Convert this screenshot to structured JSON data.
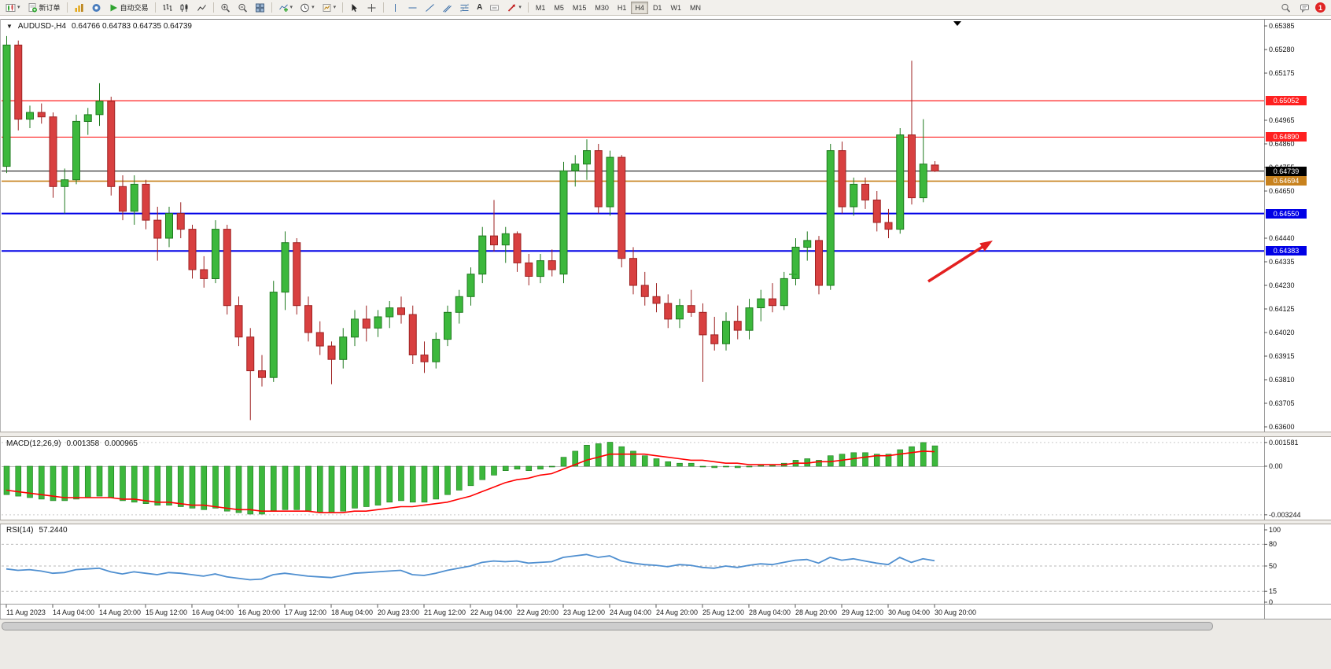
{
  "toolbar": {
    "new_order": "新订单",
    "autotrading": "自动交易",
    "timeframes": [
      "M1",
      "M5",
      "M15",
      "M30",
      "H1",
      "H4",
      "D1",
      "W1",
      "MN"
    ],
    "active_timeframe": "H4",
    "notification_badge": "1"
  },
  "chart": {
    "symbol": "AUDUSD-,H4",
    "ohlc_text": "0.64766 0.64783 0.64735 0.64739"
  },
  "macd": {
    "label": "MACD(12,26,9)",
    "value_main": "0.001358",
    "value_signal": "0.000965",
    "axis_ticks": [
      "0.001581",
      "0.00",
      "-0.003244"
    ]
  },
  "rsi": {
    "label": "RSI(14)",
    "value": "57.2440",
    "axis_ticks": [
      "100",
      "80",
      "50",
      "15",
      "0"
    ],
    "dashed_levels": [
      80,
      50,
      15
    ]
  },
  "colors": {
    "bull": "#3cb83c",
    "bull_border": "#1f7a1f",
    "bear": "#d84040",
    "bear_border": "#9e2222",
    "macd_hist": "#3cb83c",
    "macd_hist_border": "#1f7a1f",
    "macd_signal": "#ff0000",
    "rsi_line": "#4f8fd0",
    "arrow": "#e32020"
  },
  "chart_data": {
    "type": "candlestick",
    "title": "AUDUSD-,H4",
    "current": {
      "open": 0.64766,
      "high": 0.64783,
      "low": 0.64735,
      "close": 0.64739
    },
    "y_range": [
      0.636,
      0.65385
    ],
    "y_axis_ticks": [
      "0.65385",
      "0.65280",
      "0.65175",
      "0.64965",
      "0.64860",
      "0.64755",
      "0.64650",
      "0.64440",
      "0.64335",
      "0.64230",
      "0.64125",
      "0.64020",
      "0.63915",
      "0.63810",
      "0.63705",
      "0.63600"
    ],
    "levels": [
      {
        "name": "resistance-upper",
        "label": "0.65052",
        "price": 0.65052,
        "color": "#ff2020",
        "stroke_width": 1.2
      },
      {
        "name": "resistance-lower",
        "label": "0.64890",
        "price": 0.6489,
        "color": "#ff2020",
        "stroke_width": 1.2
      },
      {
        "name": "current-price",
        "label": "0.64739",
        "price": 0.64739,
        "color": "#000000",
        "stroke_width": 1
      },
      {
        "name": "pivot",
        "label": "0.64694",
        "price": 0.64694,
        "color": "#c8821e",
        "stroke_width": 1.6
      },
      {
        "name": "support-upper",
        "label": "0.64550",
        "price": 0.6455,
        "color": "#0000e6",
        "stroke_width": 2
      },
      {
        "name": "support-lower",
        "label": "0.64383",
        "price": 0.64383,
        "color": "#0000e6",
        "stroke_width": 2
      }
    ],
    "candles": [
      [
        0.6476,
        0.6534,
        0.6473,
        0.653
      ],
      [
        0.653,
        0.6532,
        0.6492,
        0.6497
      ],
      [
        0.6497,
        0.6503,
        0.6493,
        0.65
      ],
      [
        0.65,
        0.6504,
        0.6495,
        0.6498
      ],
      [
        0.6498,
        0.65,
        0.6462,
        0.6467
      ],
      [
        0.6467,
        0.6475,
        0.6455,
        0.647
      ],
      [
        0.647,
        0.6499,
        0.6468,
        0.6496
      ],
      [
        0.6496,
        0.6502,
        0.649,
        0.6499
      ],
      [
        0.6499,
        0.6513,
        0.6494,
        0.6505
      ],
      [
        0.6505,
        0.6507,
        0.6463,
        0.6467
      ],
      [
        0.6467,
        0.6472,
        0.6452,
        0.6456
      ],
      [
        0.6456,
        0.6472,
        0.645,
        0.6468
      ],
      [
        0.6468,
        0.647,
        0.6448,
        0.6452
      ],
      [
        0.6452,
        0.6458,
        0.6434,
        0.6444
      ],
      [
        0.6444,
        0.6458,
        0.644,
        0.6455
      ],
      [
        0.6455,
        0.646,
        0.6444,
        0.6448
      ],
      [
        0.6448,
        0.645,
        0.6426,
        0.643
      ],
      [
        0.643,
        0.6436,
        0.6422,
        0.6426
      ],
      [
        0.6426,
        0.6452,
        0.6424,
        0.6448
      ],
      [
        0.6448,
        0.645,
        0.641,
        0.6414
      ],
      [
        0.6414,
        0.6418,
        0.6396,
        0.64
      ],
      [
        0.64,
        0.6404,
        0.6363,
        0.6385
      ],
      [
        0.6385,
        0.6392,
        0.6378,
        0.6382
      ],
      [
        0.6382,
        0.6425,
        0.638,
        0.642
      ],
      [
        0.642,
        0.6447,
        0.6412,
        0.6442
      ],
      [
        0.6442,
        0.6444,
        0.641,
        0.6414
      ],
      [
        0.6414,
        0.6418,
        0.6398,
        0.6402
      ],
      [
        0.6402,
        0.6407,
        0.6392,
        0.6396
      ],
      [
        0.6396,
        0.6398,
        0.6379,
        0.639
      ],
      [
        0.639,
        0.6404,
        0.6386,
        0.64
      ],
      [
        0.64,
        0.6412,
        0.6396,
        0.6408
      ],
      [
        0.6408,
        0.6414,
        0.6398,
        0.6404
      ],
      [
        0.6404,
        0.6412,
        0.64,
        0.6409
      ],
      [
        0.6409,
        0.6416,
        0.6404,
        0.6413
      ],
      [
        0.6413,
        0.6418,
        0.6406,
        0.641
      ],
      [
        0.641,
        0.6414,
        0.6388,
        0.6392
      ],
      [
        0.6392,
        0.6398,
        0.6384,
        0.6389
      ],
      [
        0.6389,
        0.6402,
        0.6386,
        0.6399
      ],
      [
        0.6399,
        0.6414,
        0.6396,
        0.6411
      ],
      [
        0.6411,
        0.6421,
        0.6406,
        0.6418
      ],
      [
        0.6418,
        0.6431,
        0.6414,
        0.6428
      ],
      [
        0.6428,
        0.6449,
        0.6424,
        0.6445
      ],
      [
        0.6445,
        0.6461,
        0.6438,
        0.6441
      ],
      [
        0.6441,
        0.6449,
        0.6433,
        0.6446
      ],
      [
        0.6446,
        0.6447,
        0.6429,
        0.6433
      ],
      [
        0.6433,
        0.6437,
        0.6423,
        0.6427
      ],
      [
        0.6427,
        0.6437,
        0.6424,
        0.6434
      ],
      [
        0.6434,
        0.6439,
        0.6427,
        0.643
      ],
      [
        0.6428,
        0.6478,
        0.6424,
        0.6474
      ],
      [
        0.6474,
        0.6481,
        0.6467,
        0.6477
      ],
      [
        0.6477,
        0.6488,
        0.647,
        0.6483
      ],
      [
        0.6483,
        0.6486,
        0.6455,
        0.6458
      ],
      [
        0.6458,
        0.6483,
        0.6454,
        0.648
      ],
      [
        0.648,
        0.6481,
        0.6431,
        0.6435
      ],
      [
        0.6435,
        0.644,
        0.6419,
        0.6423
      ],
      [
        0.6423,
        0.6429,
        0.6414,
        0.6418
      ],
      [
        0.6418,
        0.6424,
        0.6411,
        0.6415
      ],
      [
        0.6415,
        0.6419,
        0.6404,
        0.6408
      ],
      [
        0.6408,
        0.6417,
        0.6404,
        0.6414
      ],
      [
        0.6414,
        0.6421,
        0.6409,
        0.6411
      ],
      [
        0.6411,
        0.6415,
        0.638,
        0.6401
      ],
      [
        0.6401,
        0.6409,
        0.6394,
        0.6397
      ],
      [
        0.6397,
        0.6411,
        0.6394,
        0.6407
      ],
      [
        0.6407,
        0.6414,
        0.6399,
        0.6403
      ],
      [
        0.6403,
        0.6417,
        0.6399,
        0.6413
      ],
      [
        0.6413,
        0.6421,
        0.6407,
        0.6417
      ],
      [
        0.6417,
        0.6424,
        0.6411,
        0.6414
      ],
      [
        0.6414,
        0.6429,
        0.6412,
        0.6426
      ],
      [
        0.6426,
        0.6444,
        0.6423,
        0.644
      ],
      [
        0.644,
        0.6447,
        0.6434,
        0.6443
      ],
      [
        0.6443,
        0.6445,
        0.6419,
        0.6423
      ],
      [
        0.6423,
        0.6486,
        0.6421,
        0.6483
      ],
      [
        0.6483,
        0.6487,
        0.6455,
        0.6458
      ],
      [
        0.6458,
        0.6471,
        0.6454,
        0.6468
      ],
      [
        0.6468,
        0.6471,
        0.6457,
        0.6461
      ],
      [
        0.6461,
        0.6465,
        0.6447,
        0.6451
      ],
      [
        0.6451,
        0.6457,
        0.6444,
        0.6448
      ],
      [
        0.6448,
        0.6493,
        0.6446,
        0.649
      ],
      [
        0.649,
        0.6523,
        0.6459,
        0.6462
      ],
      [
        0.6462,
        0.6497,
        0.646,
        0.6477
      ],
      [
        0.64766,
        0.64783,
        0.64735,
        0.64739
      ]
    ],
    "macd_histogram": [
      -0.0019,
      -0.002,
      -0.0021,
      -0.0022,
      -0.0023,
      -0.0023,
      -0.0022,
      -0.0021,
      -0.002,
      -0.0021,
      -0.0023,
      -0.0024,
      -0.0025,
      -0.0026,
      -0.0026,
      -0.0027,
      -0.0028,
      -0.0029,
      -0.0028,
      -0.003,
      -0.0031,
      -0.0032,
      -0.0032,
      -0.003,
      -0.0029,
      -0.0029,
      -0.003,
      -0.0031,
      -0.0031,
      -0.003,
      -0.0028,
      -0.0027,
      -0.0026,
      -0.0024,
      -0.0023,
      -0.0024,
      -0.0024,
      -0.0022,
      -0.0019,
      -0.0016,
      -0.0013,
      -0.0009,
      -0.0006,
      -0.0003,
      -0.0002,
      -0.0003,
      -0.0002,
      0.0,
      0.0006,
      0.001,
      0.0014,
      0.0015,
      0.0016,
      0.0013,
      0.001,
      0.0007,
      0.0005,
      0.0003,
      0.0002,
      0.0002,
      0.0,
      -0.0001,
      0.0,
      -0.0001,
      0.0,
      0.0001,
      0.0001,
      0.0002,
      0.0004,
      0.0005,
      0.0004,
      0.0007,
      0.0008,
      0.0009,
      0.0009,
      0.0008,
      0.0008,
      0.0011,
      0.0013,
      0.001581,
      0.001358
    ],
    "macd_signal": [
      -0.0016,
      -0.0017,
      -0.0018,
      -0.0019,
      -0.002,
      -0.0021,
      -0.0021,
      -0.0021,
      -0.0021,
      -0.0021,
      -0.0022,
      -0.0022,
      -0.0023,
      -0.0024,
      -0.0024,
      -0.0025,
      -0.0026,
      -0.0026,
      -0.0027,
      -0.0028,
      -0.0029,
      -0.0029,
      -0.003,
      -0.003,
      -0.003,
      -0.003,
      -0.003,
      -0.0031,
      -0.0031,
      -0.0031,
      -0.003,
      -0.003,
      -0.0029,
      -0.0028,
      -0.0027,
      -0.0027,
      -0.0026,
      -0.0025,
      -0.0024,
      -0.0022,
      -0.002,
      -0.0017,
      -0.0014,
      -0.0011,
      -0.0009,
      -0.0008,
      -0.0006,
      -0.0005,
      -0.0002,
      0.0001,
      0.0004,
      0.0006,
      0.0008,
      0.0008,
      0.0008,
      0.0008,
      0.0007,
      0.0006,
      0.0005,
      0.0004,
      0.0004,
      0.0003,
      0.0002,
      0.0002,
      0.0001,
      0.0001,
      0.0001,
      0.0001,
      0.0002,
      0.0002,
      0.0003,
      0.0003,
      0.0004,
      0.0005,
      0.0006,
      0.0007,
      0.0007,
      0.0008,
      0.0009,
      0.001,
      0.000965
    ],
    "rsi_values": [
      46,
      44,
      45,
      43,
      40,
      41,
      45,
      46,
      47,
      42,
      39,
      42,
      40,
      38,
      41,
      40,
      38,
      36,
      39,
      35,
      33,
      31,
      32,
      38,
      40,
      38,
      36,
      35,
      34,
      37,
      40,
      41,
      42,
      43,
      44,
      38,
      37,
      40,
      44,
      47,
      50,
      55,
      57,
      56,
      57,
      54,
      55,
      56,
      62,
      64,
      66,
      62,
      64,
      57,
      54,
      52,
      51,
      49,
      52,
      51,
      48,
      47,
      50,
      48,
      51,
      53,
      52,
      55,
      58,
      59,
      54,
      62,
      58,
      60,
      57,
      54,
      52,
      62,
      55,
      60,
      57.244
    ],
    "time_labels": [
      "11 Aug 2023",
      "14 Aug 04:00",
      "14 Aug 20:00",
      "15 Aug 12:00",
      "16 Aug 04:00",
      "16 Aug 20:00",
      "17 Aug 12:00",
      "18 Aug 04:00",
      "20 Aug 23:00",
      "21 Aug 12:00",
      "22 Aug 04:00",
      "22 Aug 20:00",
      "23 Aug 12:00",
      "24 Aug 04:00",
      "24 Aug 20:00",
      "25 Aug 12:00",
      "28 Aug 04:00",
      "28 Aug 20:00",
      "29 Aug 12:00",
      "30 Aug 04:00",
      "30 Aug 20:00"
    ],
    "annotations": {
      "arrow": {
        "note": "red up-right arrow in empty space right of last candle"
      }
    }
  }
}
